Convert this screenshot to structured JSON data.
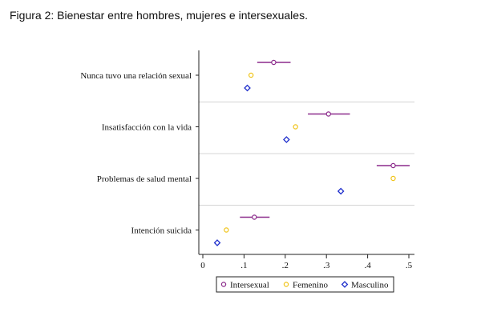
{
  "caption": "Figura 2: Bienestar entre hombres, mujeres e intersexuales.",
  "chart_data": {
    "type": "scatter",
    "orientation": "horizontal",
    "title": "",
    "xlabel": "",
    "ylabel": "",
    "xlim": [
      0,
      0.5
    ],
    "xticks": [
      0,
      0.1,
      0.2,
      0.3,
      0.4,
      0.5
    ],
    "xtick_labels": [
      "0",
      ".1",
      ".2",
      ".3",
      ".4",
      ".5"
    ],
    "grid": "horizontal separators between groups",
    "legend_position": "bottom",
    "categories": [
      "Nunca tuvo una relación sexual",
      "Insatisfacción con la vida",
      "Problemas de salud mental",
      "Intención suicida"
    ],
    "series": [
      {
        "name": "Intersexual",
        "color": "#8b2a8b",
        "marker": "circle",
        "values": [
          0.172,
          0.305,
          0.462,
          0.125
        ],
        "ci_low": [
          0.132,
          0.255,
          0.422,
          0.09
        ],
        "ci_high": [
          0.213,
          0.357,
          0.502,
          0.162
        ]
      },
      {
        "name": "Femenino",
        "color": "#f0c419",
        "marker": "circle",
        "values": [
          0.117,
          0.225,
          0.462,
          0.057
        ],
        "ci_low": [
          0.112,
          0.22,
          0.457,
          0.052
        ],
        "ci_high": [
          0.122,
          0.23,
          0.467,
          0.062
        ]
      },
      {
        "name": "Masculino",
        "color": "#1f2fcc",
        "marker": "diamond",
        "values": [
          0.108,
          0.203,
          0.335,
          0.035
        ],
        "ci_low": [
          0.104,
          0.199,
          0.331,
          0.031
        ],
        "ci_high": [
          0.112,
          0.207,
          0.339,
          0.039
        ]
      }
    ]
  }
}
